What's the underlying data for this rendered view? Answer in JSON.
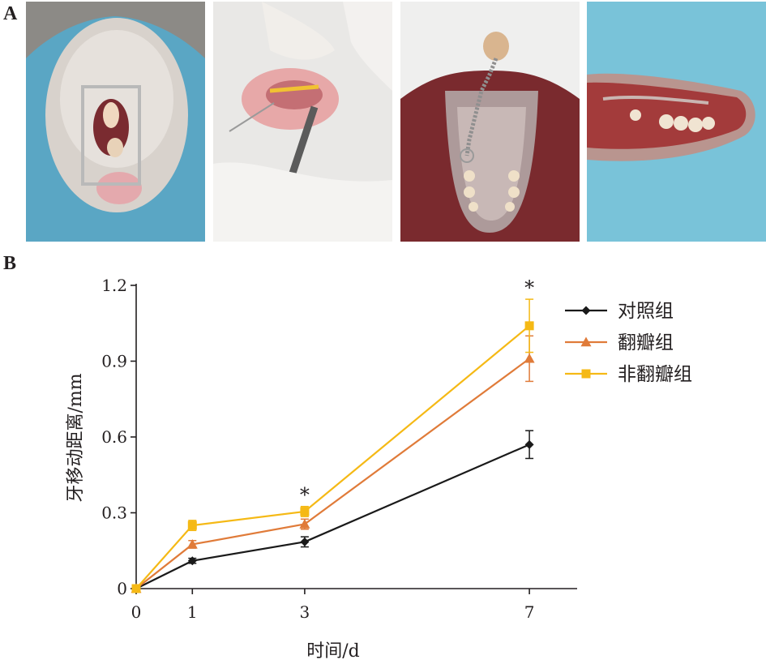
{
  "panels": {
    "a_label": "A",
    "b_label": "B"
  },
  "photos": [
    {
      "subject": "rat mouth with wire expander appliance"
    },
    {
      "subject": "spring placement with forceps"
    },
    {
      "subject": "palate view with coil spring and molars"
    },
    {
      "subject": "dissected maxilla on blue drape"
    }
  ],
  "chart_data": {
    "type": "line",
    "title": "",
    "xlabel": "时间/d",
    "ylabel": "牙移动距离/mm",
    "x": [
      0,
      1,
      3,
      7
    ],
    "x_ticks": [
      "0",
      "1",
      "3",
      "7"
    ],
    "y_ticks": [
      "0",
      "0.3",
      "0.6",
      "0.9",
      "1.2"
    ],
    "ylim": [
      0,
      1.2
    ],
    "grid": false,
    "legend_position": "top-right",
    "significance_marks": [
      {
        "x": 3,
        "label": "*"
      },
      {
        "x": 7,
        "label": "*"
      }
    ],
    "series": [
      {
        "name": "对照组",
        "color": "#1a1a1a",
        "marker": "diamond",
        "values": [
          0,
          0.11,
          0.185,
          0.57
        ],
        "errors": [
          0,
          0.01,
          0.02,
          0.055
        ]
      },
      {
        "name": "翻瓣组",
        "color": "#e07b39",
        "marker": "triangle",
        "values": [
          0,
          0.175,
          0.255,
          0.91
        ],
        "errors": [
          0,
          0.015,
          0.02,
          0.09
        ]
      },
      {
        "name": "非翻瓣组",
        "color": "#f5b915",
        "marker": "square",
        "values": [
          0,
          0.25,
          0.305,
          1.04
        ],
        "errors": [
          0,
          0.02,
          0.02,
          0.105
        ]
      }
    ]
  }
}
